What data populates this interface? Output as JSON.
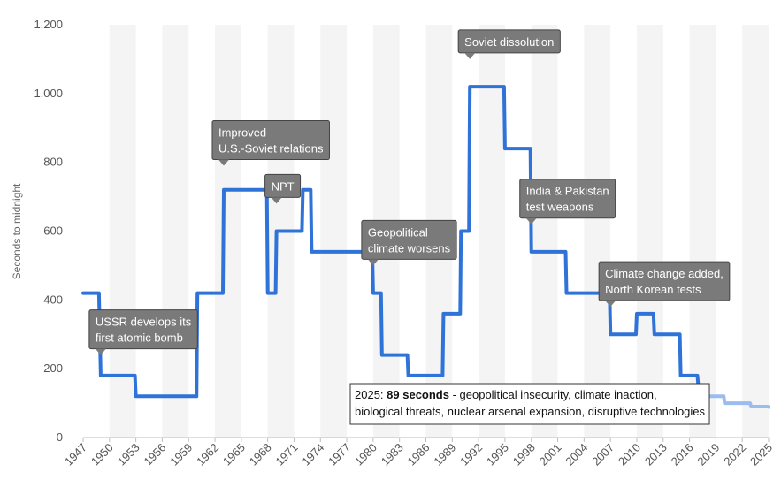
{
  "chart_data": {
    "type": "line",
    "ylabel": "Seconds to midnight",
    "ylim": [
      0,
      1200
    ],
    "yticks": [
      0,
      200,
      400,
      600,
      800,
      1000,
      1200
    ],
    "ytick_labels": [
      "0",
      "200",
      "400",
      "600",
      "800",
      "1,000",
      "1,200"
    ],
    "xlim": [
      1947,
      2025
    ],
    "xticks": [
      1947,
      1950,
      1953,
      1956,
      1959,
      1962,
      1965,
      1968,
      1971,
      1974,
      1977,
      1980,
      1983,
      1986,
      1989,
      1992,
      1995,
      1998,
      2001,
      2004,
      2007,
      2010,
      2013,
      2016,
      2019,
      2022,
      2025
    ],
    "grid": "alternating vertical bands",
    "series": [
      {
        "color": "#2f73d8",
        "x": [
          1947,
          1948.8,
          1949,
          1952.9,
          1953,
          1959.9,
          1960,
          1962.9,
          1963,
          1967.9,
          1968,
          1968.9,
          1969,
          1971.9,
          1972,
          1972.9,
          1973,
          1979.9,
          1980,
          1980.9,
          1981,
          1983.9,
          1984,
          1987.9,
          1988,
          1989.9,
          1990,
          1990.9,
          1991,
          1994.9,
          1995,
          1997.9,
          1998,
          2001.9,
          2002,
          2006.9,
          2007,
          2009.9,
          2010,
          2011.9,
          2012,
          2014.9,
          2015,
          2016.9,
          2017
        ],
        "y": [
          420,
          420,
          180,
          180,
          120,
          120,
          420,
          420,
          720,
          720,
          420,
          420,
          600,
          600,
          720,
          720,
          540,
          540,
          420,
          420,
          240,
          240,
          180,
          180,
          360,
          360,
          600,
          600,
          1020,
          1020,
          840,
          840,
          540,
          540,
          420,
          420,
          300,
          300,
          360,
          360,
          300,
          300,
          180,
          180,
          150
        ]
      },
      {
        "color": "#9bbcf0",
        "x": [
          2017,
          2017.9,
          2018,
          2019.9,
          2020,
          2022.9,
          2023,
          2023.9,
          2024,
          2024.9,
          2025
        ],
        "y": [
          150,
          150,
          120,
          120,
          100,
          100,
          90,
          90,
          90,
          90,
          89
        ]
      }
    ],
    "annotations": [
      {
        "lines": [
          "USSR develops its",
          "first atomic bomb"
        ],
        "x": 1949,
        "y": 240
      },
      {
        "lines": [
          "Improved",
          "U.S.-Soviet relations"
        ],
        "x": 1963,
        "y": 790
      },
      {
        "lines": [
          "NPT"
        ],
        "x": 1969,
        "y": 680
      },
      {
        "lines": [
          "Geopolitical",
          "climate worsens"
        ],
        "x": 1980,
        "y": 500
      },
      {
        "lines": [
          "Soviet dissolution"
        ],
        "x": 1991,
        "y": 1100
      },
      {
        "lines": [
          "India & Pakistan",
          "test weapons"
        ],
        "x": 1998,
        "y": 620
      },
      {
        "lines": [
          "Climate change added,",
          "North Korean tests"
        ],
        "x": 2007,
        "y": 380
      }
    ],
    "highlight_box": {
      "lines": [
        {
          "prefix": "2025: ",
          "bold": "89 seconds",
          "rest": " - geopolitical insecurity, climate inaction,"
        },
        {
          "prefix": "biological threats, nuclear arsenal expansion, disruptive technologies",
          "bold": "",
          "rest": ""
        }
      ]
    }
  }
}
